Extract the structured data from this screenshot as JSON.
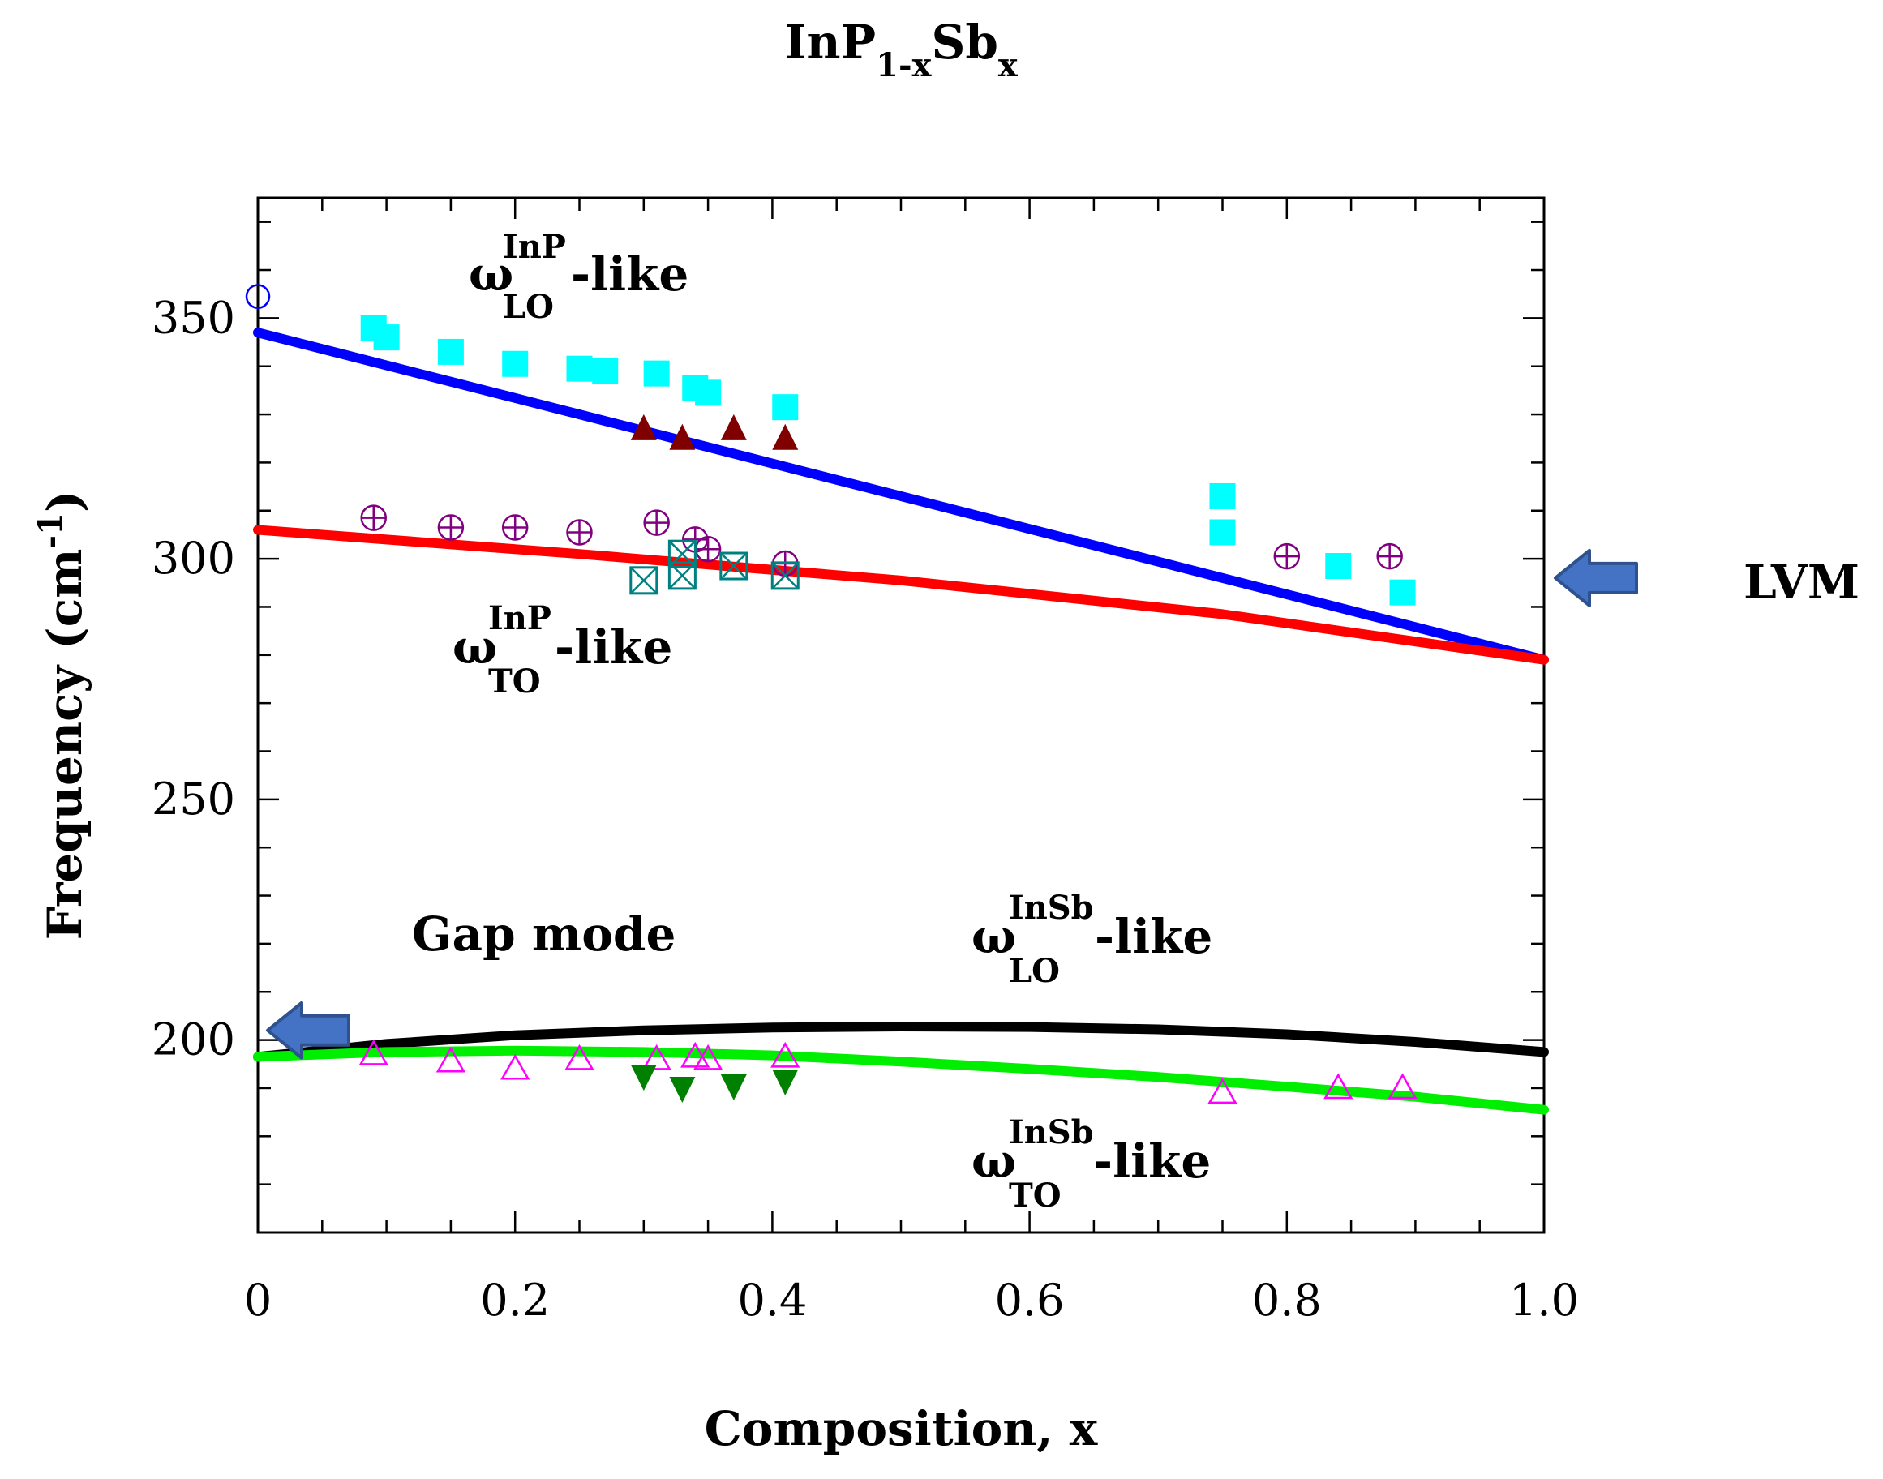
{
  "chart_data": {
    "type": "scatter",
    "title": {
      "main": "InP",
      "sub1": "1-x",
      "mid": "Sb",
      "sub2": "x"
    },
    "xlabel": "Composition, x",
    "ylabel": {
      "main": "Frequency (cm",
      "sup": "-1",
      "close": ")"
    },
    "xlim": [
      0,
      1.0
    ],
    "ylim": [
      160,
      375
    ],
    "x_ticks": [
      0,
      0.2,
      0.4,
      0.6,
      0.8,
      1.0
    ],
    "x_tick_labels": [
      "0",
      "0.2",
      "0.4",
      "0.6",
      "0.8",
      "1.0"
    ],
    "y_ticks": [
      200,
      250,
      300,
      350
    ],
    "y_tick_labels": [
      "200",
      "250",
      "300",
      "350"
    ],
    "annotations": {
      "lo_inp": {
        "omega": "ω",
        "sup": "InP",
        "sub": "LO",
        "suffix": "-like"
      },
      "to_inp": {
        "omega": "ω",
        "sup": "InP",
        "sub": "TO",
        "suffix": "-like"
      },
      "lo_insb": {
        "omega": "ω",
        "sup": "InSb",
        "sub": "LO",
        "suffix": "-like"
      },
      "to_insb": {
        "omega": "ω",
        "sup": "InSb",
        "sub": "TO",
        "suffix": "-like"
      },
      "gap_mode": "Gap mode",
      "lvm": "LVM"
    },
    "arrows": [
      {
        "name": "gap-mode-arrow",
        "direction": "left",
        "y": 202,
        "color": "#4472c4"
      },
      {
        "name": "lvm-arrow",
        "direction": "left",
        "y": 296,
        "color": "#4472c4"
      }
    ],
    "curves": [
      {
        "name": "InP LO-like",
        "color": "#0000ff",
        "x": [
          0,
          1.0
        ],
        "y": [
          347,
          279
        ]
      },
      {
        "name": "InP TO-like",
        "color": "#ff0000",
        "x": [
          0,
          0.25,
          0.5,
          0.75,
          1.0
        ],
        "y": [
          306,
          301,
          295.5,
          288.5,
          279
        ]
      },
      {
        "name": "InSb LO-like",
        "color": "#000000",
        "x": [
          0,
          0.1,
          0.2,
          0.3,
          0.4,
          0.5,
          0.6,
          0.7,
          0.8,
          0.9,
          1.0
        ],
        "y": [
          196.5,
          199.2,
          201,
          202,
          202.6,
          202.8,
          202.7,
          202.2,
          201.2,
          199.6,
          197.5
        ]
      },
      {
        "name": "InSb TO-like",
        "color": "#00ee00",
        "x": [
          0,
          0.1,
          0.2,
          0.3,
          0.4,
          0.5,
          0.6,
          0.7,
          0.8,
          0.9,
          1.0
        ],
        "y": [
          196.5,
          197.5,
          197.8,
          197.5,
          196.8,
          195.5,
          194,
          192.3,
          190.3,
          188.2,
          185.5
        ]
      }
    ],
    "series": [
      {
        "name": "InP LO-like (filled squares)",
        "marker": "filled-square",
        "color": "#00ffff",
        "points": [
          [
            0.09,
            348
          ],
          [
            0.1,
            346
          ],
          [
            0.15,
            343
          ],
          [
            0.2,
            340.5
          ],
          [
            0.25,
            339.5
          ],
          [
            0.27,
            339
          ],
          [
            0.31,
            338.5
          ],
          [
            0.34,
            335.5
          ],
          [
            0.35,
            334.5
          ],
          [
            0.41,
            331.5
          ],
          [
            0.75,
            313
          ],
          [
            0.75,
            305.5
          ],
          [
            0.84,
            298.5
          ],
          [
            0.89,
            293
          ]
        ]
      },
      {
        "name": "InP LO-like (filled triangles)",
        "marker": "filled-triangle-up",
        "color": "#800000",
        "points": [
          [
            0.3,
            327
          ],
          [
            0.33,
            325
          ],
          [
            0.37,
            327
          ],
          [
            0.41,
            325
          ]
        ]
      },
      {
        "name": "InP LO-like (open circle)",
        "marker": "open-circle",
        "color": "#0000ff",
        "points": [
          [
            0,
            354.5
          ]
        ]
      },
      {
        "name": "InP TO-like (circled plus)",
        "marker": "circle-plus",
        "color": "#800080",
        "points": [
          [
            0.09,
            308.5
          ],
          [
            0.15,
            306.5
          ],
          [
            0.2,
            306.5
          ],
          [
            0.25,
            305.5
          ],
          [
            0.31,
            307.5
          ],
          [
            0.34,
            304
          ],
          [
            0.35,
            302
          ],
          [
            0.41,
            299
          ],
          [
            0.8,
            300.5
          ],
          [
            0.88,
            300.5
          ]
        ]
      },
      {
        "name": "InP TO-like (boxed x)",
        "marker": "box-x",
        "color": "#008080",
        "points": [
          [
            0.3,
            295.5
          ],
          [
            0.33,
            296.5
          ],
          [
            0.33,
            301
          ],
          [
            0.37,
            298.5
          ],
          [
            0.41,
            296.5
          ]
        ]
      },
      {
        "name": "InSb LO-like (open triangles)",
        "marker": "open-triangle-up",
        "color": "#ff00ff",
        "points": [
          [
            0.09,
            197
          ],
          [
            0.15,
            195.5
          ],
          [
            0.2,
            194
          ],
          [
            0.25,
            196
          ],
          [
            0.31,
            196
          ],
          [
            0.34,
            196.5
          ],
          [
            0.35,
            196
          ],
          [
            0.41,
            196.5
          ],
          [
            0.75,
            189
          ],
          [
            0.84,
            190
          ],
          [
            0.89,
            190
          ]
        ]
      },
      {
        "name": "InSb TO-like (filled inverted triangles)",
        "marker": "filled-triangle-down",
        "color": "#008000",
        "points": [
          [
            0.3,
            192.5
          ],
          [
            0.33,
            190
          ],
          [
            0.37,
            190.5
          ],
          [
            0.41,
            191.5
          ]
        ]
      }
    ]
  }
}
